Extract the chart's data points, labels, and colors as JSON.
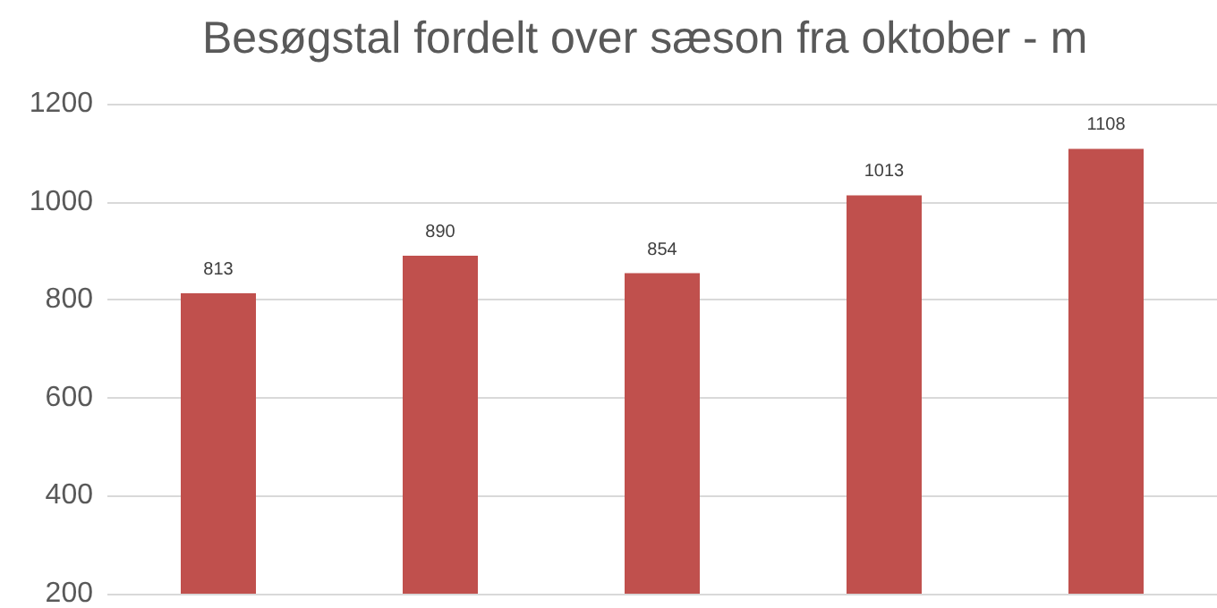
{
  "chart_data": {
    "type": "bar",
    "title": "Besøgstal fordelt over sæson fra oktober - m",
    "categories": [
      null,
      null,
      null,
      null,
      null
    ],
    "values": [
      813,
      890,
      854,
      1013,
      1108
    ],
    "color": "#c0504d",
    "ylim": [
      200,
      1200
    ],
    "yticks": [
      200,
      400,
      600,
      800,
      1000,
      1200
    ],
    "grid": "y",
    "data_labels": true
  }
}
